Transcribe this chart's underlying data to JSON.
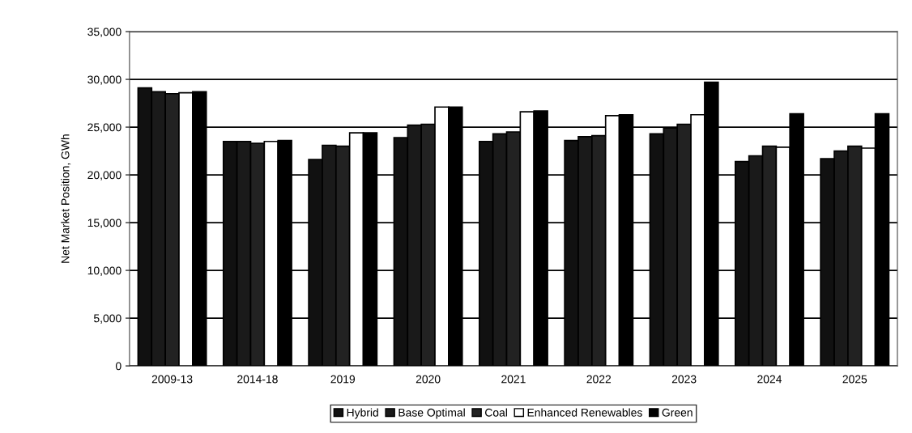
{
  "chart_data": {
    "type": "bar",
    "ylabel": "Net Market Position, GWh",
    "categories": [
      "2009-13",
      "2014-18",
      "2019",
      "2020",
      "2021",
      "2022",
      "2023",
      "2024",
      "2025"
    ],
    "series": [
      {
        "name": "Hybrid",
        "color": "#111111",
        "values": [
          29100,
          23500,
          21600,
          23900,
          23500,
          23600,
          24300,
          21400,
          21700
        ]
      },
      {
        "name": "Base Optimal",
        "color": "#1a1a1a",
        "values": [
          28700,
          23500,
          23100,
          25200,
          24300,
          24000,
          24900,
          22000,
          22500
        ]
      },
      {
        "name": "Coal",
        "color": "#222222",
        "values": [
          28500,
          23300,
          23000,
          25300,
          24500,
          24100,
          25300,
          23000,
          23000
        ]
      },
      {
        "name": "Enhanced Renewables",
        "color": "#ffffff",
        "values": [
          28600,
          23500,
          24400,
          27100,
          26600,
          26200,
          26300,
          22900,
          22800
        ]
      },
      {
        "name": "Green",
        "color": "#000000",
        "values": [
          28700,
          23600,
          24400,
          27100,
          26700,
          26300,
          29700,
          26400,
          26400
        ]
      }
    ],
    "ylim": [
      0,
      35000
    ],
    "yticks": [
      {
        "value": 0,
        "label": "0"
      },
      {
        "value": 5000,
        "label": "5,000"
      },
      {
        "value": 10000,
        "label": "10,000"
      },
      {
        "value": 15000,
        "label": "15,000"
      },
      {
        "value": 20000,
        "label": "20,000"
      },
      {
        "value": 25000,
        "label": "25,000"
      },
      {
        "value": 30000,
        "label": "30,000"
      },
      {
        "value": 35000,
        "label": "35,000"
      }
    ],
    "grid": "y",
    "legend": "bottom"
  }
}
